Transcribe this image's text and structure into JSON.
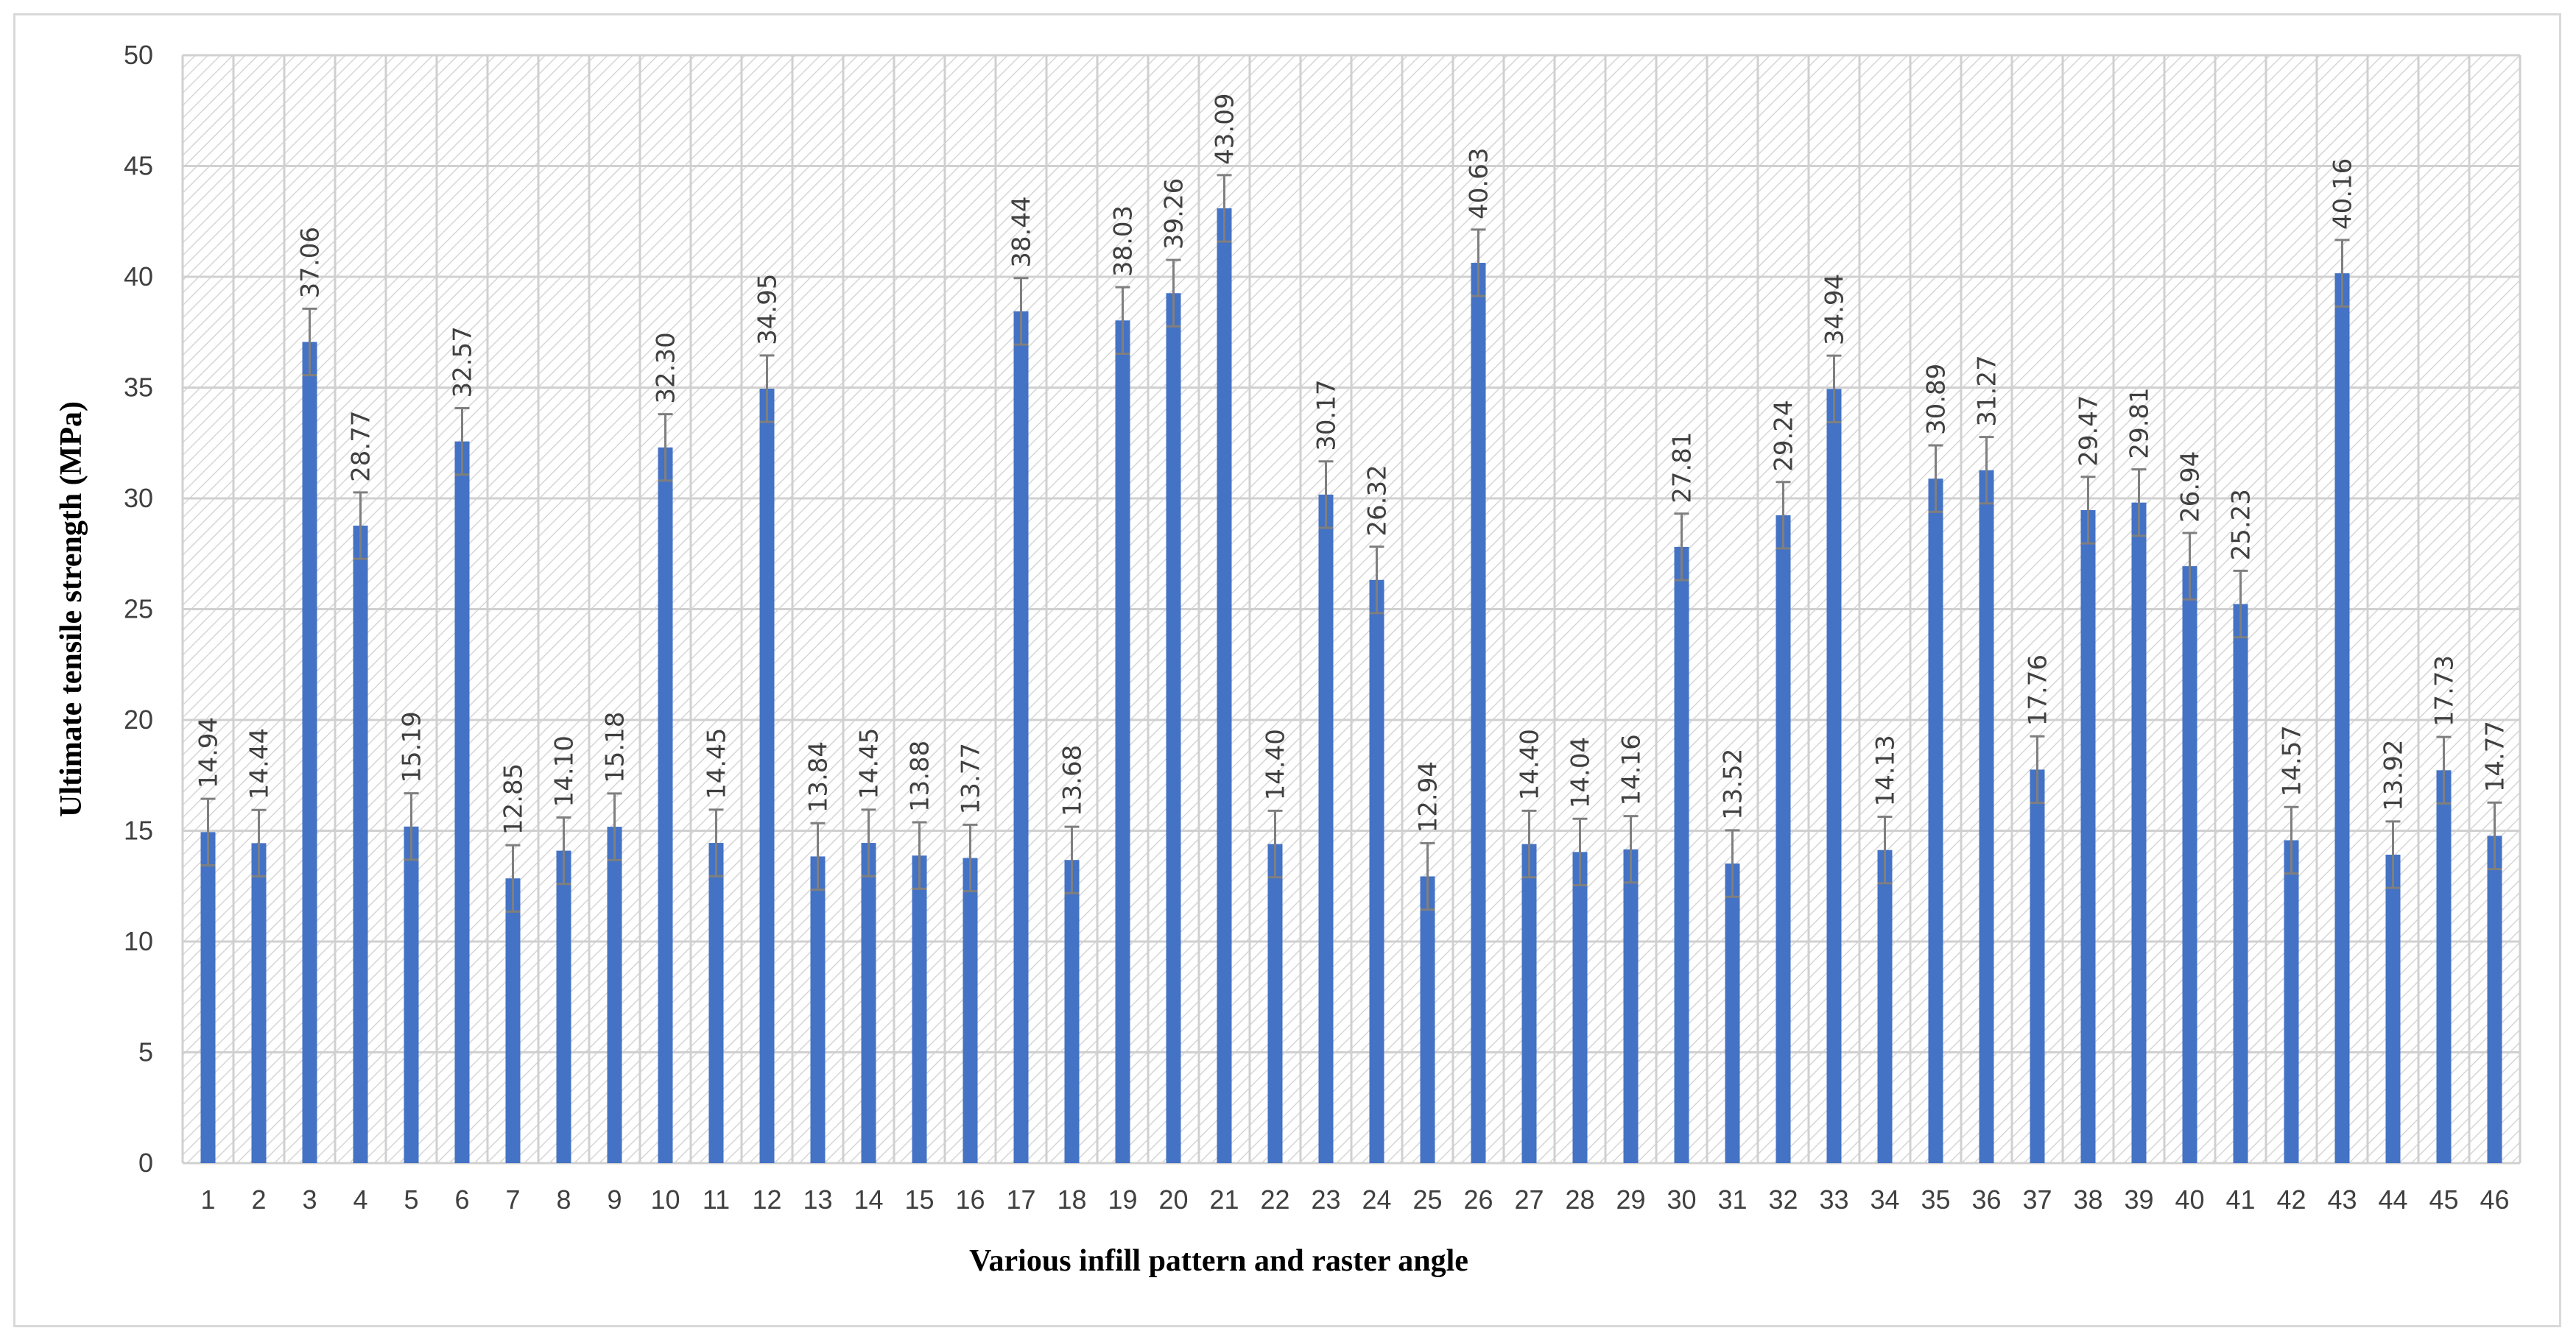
{
  "chart_data": {
    "type": "bar",
    "title": "",
    "xlabel": "Various infill pattern and raster angle",
    "ylabel": "Ultimate tensile strength (MPa)",
    "ylim": [
      0,
      50
    ],
    "yticks": [
      0,
      5,
      10,
      15,
      20,
      25,
      30,
      35,
      40,
      45,
      50
    ],
    "grid": true,
    "legend": "none",
    "bar_color": "#4472c4",
    "error_bar_color": "#7f7f7f",
    "error_bar": 1.5,
    "categories": [
      "1",
      "2",
      "3",
      "4",
      "5",
      "6",
      "7",
      "8",
      "9",
      "10",
      "11",
      "12",
      "13",
      "14",
      "15",
      "16",
      "17",
      "18",
      "19",
      "20",
      "21",
      "22",
      "23",
      "24",
      "25",
      "26",
      "27",
      "28",
      "29",
      "30",
      "31",
      "32",
      "33",
      "34",
      "35",
      "36",
      "37",
      "38",
      "39",
      "40",
      "41",
      "42",
      "43",
      "44",
      "45",
      "46"
    ],
    "values": [
      14.94,
      14.44,
      37.06,
      28.77,
      15.19,
      32.57,
      12.85,
      14.1,
      15.18,
      32.3,
      14.45,
      34.95,
      13.84,
      14.45,
      13.88,
      13.77,
      38.44,
      13.68,
      38.03,
      39.26,
      43.09,
      14.4,
      30.17,
      26.32,
      12.94,
      40.63,
      14.4,
      14.04,
      14.16,
      27.81,
      13.52,
      29.24,
      34.94,
      14.13,
      30.89,
      31.27,
      17.76,
      29.47,
      29.81,
      26.94,
      25.23,
      14.57,
      40.16,
      13.92,
      17.73,
      14.77
    ],
    "data_labels": [
      "14.94",
      "14.44",
      "37.06",
      "28.77",
      "15.19",
      "32.57",
      "12.85",
      "14.10",
      "15.18",
      "32.30",
      "14.45",
      "34.95",
      "13.84",
      "14.45",
      "13.88",
      "13.77",
      "38.44",
      "13.68",
      "38.03",
      "39.26",
      "43.09",
      "14.40",
      "30.17",
      "26.32",
      "12.94",
      "40.63",
      "14.40",
      "14.04",
      "14.16",
      "27.81",
      "13.52",
      "29.24",
      "34.94",
      "14.13",
      "30.89",
      "31.27",
      "17.76",
      "29.47",
      "29.81",
      "26.94",
      "25.23",
      "14.57",
      "40.16",
      "13.92",
      "17.73",
      "14.77"
    ]
  }
}
